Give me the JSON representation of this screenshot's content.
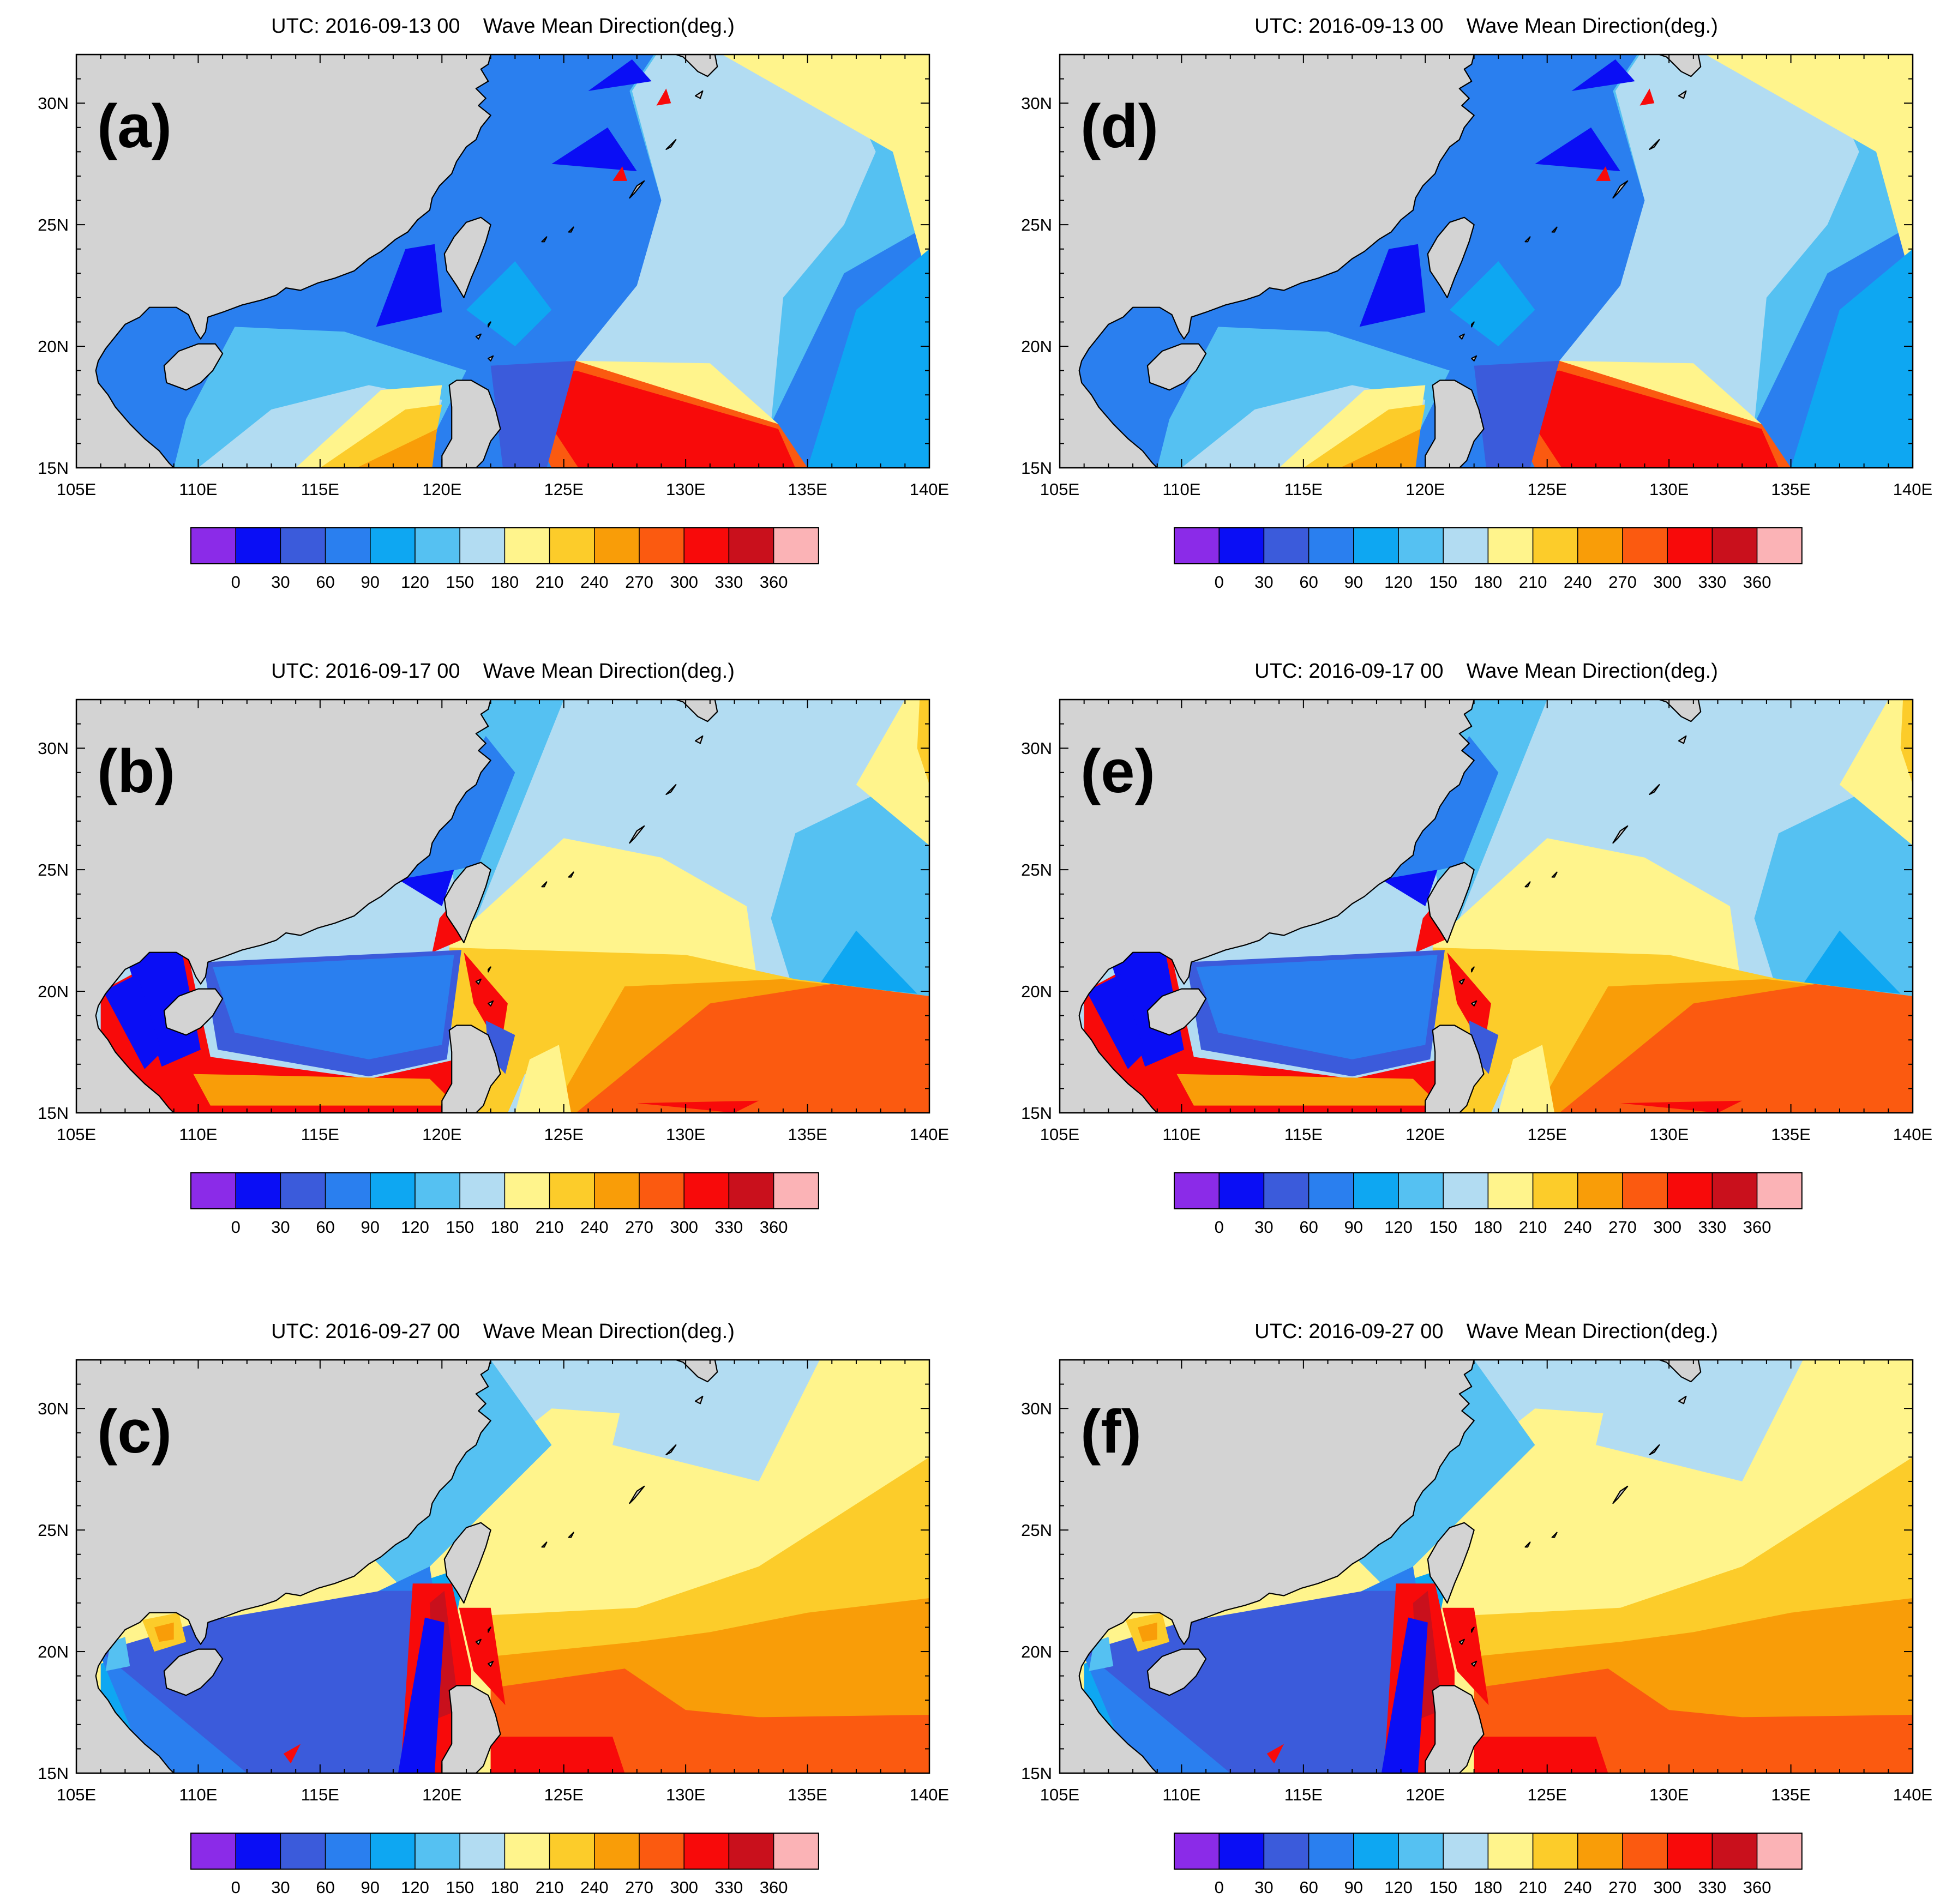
{
  "figure": {
    "panels": [
      {
        "id": "a",
        "label": "(a)",
        "title": "UTC: 2016-09-13 00    Wave Mean Direction(deg.)",
        "scenario": "sep13"
      },
      {
        "id": "b",
        "label": "(b)",
        "title": "UTC: 2016-09-17 00    Wave Mean Direction(deg.)",
        "scenario": "sep17"
      },
      {
        "id": "c",
        "label": "(c)",
        "title": "UTC: 2016-09-27 00    Wave Mean Direction(deg.)",
        "scenario": "sep27"
      },
      {
        "id": "d",
        "label": "(d)",
        "title": "UTC: 2016-09-13 00    Wave Mean Direction(deg.)",
        "scenario": "sep13"
      },
      {
        "id": "e",
        "label": "(e)",
        "title": "UTC: 2016-09-17 00    Wave Mean Direction(deg.)",
        "scenario": "sep17"
      },
      {
        "id": "f",
        "label": "(f)",
        "title": "UTC: 2016-09-27 00    Wave Mean Direction(deg.)",
        "scenario": "sep27"
      }
    ],
    "lon_range": [
      105,
      140
    ],
    "lat_range": [
      15,
      32
    ],
    "x_ticks": [
      {
        "value": 105,
        "label": "105E"
      },
      {
        "value": 110,
        "label": "110E"
      },
      {
        "value": 115,
        "label": "115E"
      },
      {
        "value": 120,
        "label": "120E"
      },
      {
        "value": 125,
        "label": "125E"
      },
      {
        "value": 130,
        "label": "130E"
      },
      {
        "value": 135,
        "label": "135E"
      },
      {
        "value": 140,
        "label": "140E"
      }
    ],
    "y_ticks": [
      {
        "value": 15,
        "label": "15N"
      },
      {
        "value": 20,
        "label": "20N"
      },
      {
        "value": 25,
        "label": "25N"
      },
      {
        "value": 30,
        "label": "30N"
      }
    ],
    "colorbar": {
      "colors": [
        "#8b2be8",
        "#0a0ef5",
        "#3b5bdb",
        "#2a7fef",
        "#0ea7f2",
        "#55c1f2",
        "#b2dcf2",
        "#fff48c",
        "#fccc2a",
        "#f99d08",
        "#fb5a10",
        "#f80a0a",
        "#c9101c",
        "#fbb3b6"
      ],
      "labels": [
        "0",
        "30",
        "60",
        "90",
        "120",
        "150",
        "180",
        "210",
        "240",
        "270",
        "300",
        "330",
        "360"
      ]
    },
    "land_color": "#d3d3d3",
    "coast_color": "#000000"
  }
}
